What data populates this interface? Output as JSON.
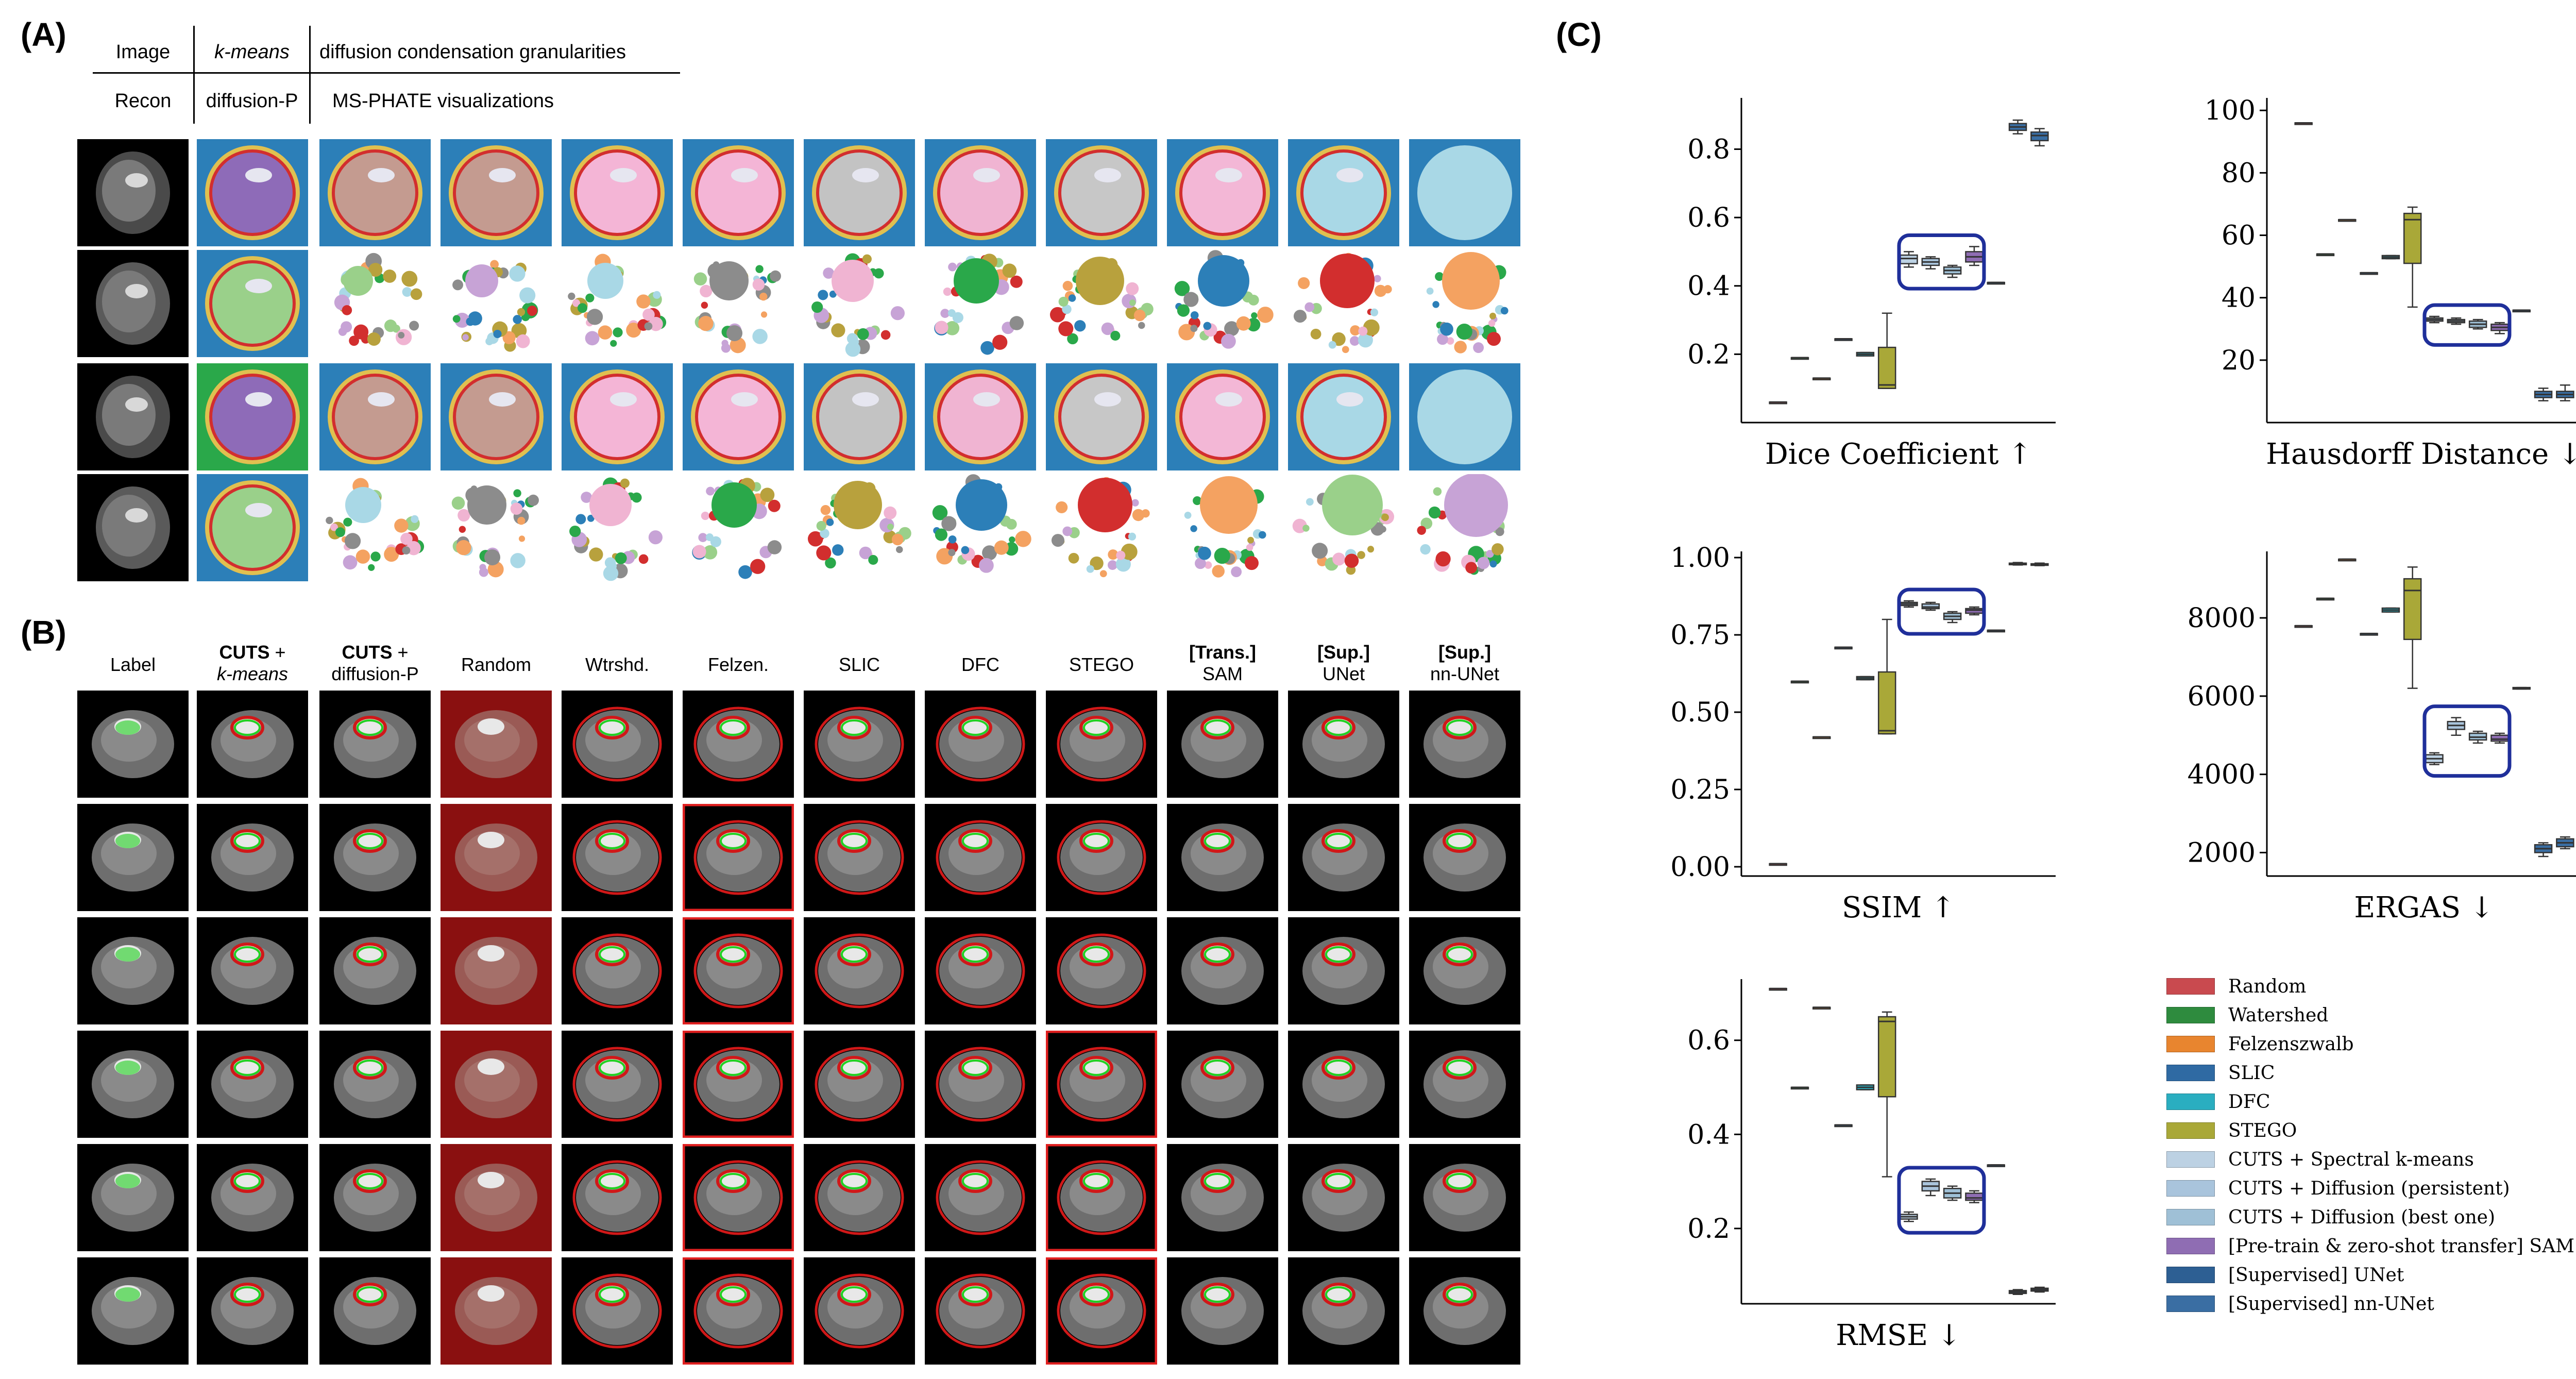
{
  "panels": {
    "a": "(A)",
    "b": "(B)",
    "c": "(C)"
  },
  "panel_a": {
    "header_row1": [
      "Image",
      "k-means",
      "diffusion condensation granularities"
    ],
    "header_row2": [
      "Recon",
      "diffusion-P",
      "MS-PHATE visualizations"
    ]
  },
  "panel_b": {
    "columns": [
      {
        "bold": "",
        "text": "Label"
      },
      {
        "bold": "CUTS",
        "text": " +",
        "line2": "k-means"
      },
      {
        "bold": "CUTS",
        "text": " +",
        "line2": "diffusion-P"
      },
      {
        "bold": "",
        "text": "Random"
      },
      {
        "bold": "",
        "text": "Wtrshd."
      },
      {
        "bold": "",
        "text": "Felzen."
      },
      {
        "bold": "",
        "text": "SLIC"
      },
      {
        "bold": "",
        "text": "DFC"
      },
      {
        "bold": "",
        "text": "STEGO"
      },
      {
        "bold": "[Trans.]",
        "text": "",
        "line2": "SAM"
      },
      {
        "bold": "[Sup.]",
        "text": "",
        "line2": "UNet"
      },
      {
        "bold": "[Sup.]",
        "text": "",
        "line2": "nn-UNet"
      }
    ]
  },
  "legend": [
    {
      "label": "Random",
      "color": "#c94a4f"
    },
    {
      "label": "Watershed",
      "color": "#2e8b3e"
    },
    {
      "label": "Felzenszwalb",
      "color": "#e8852f"
    },
    {
      "label": "SLIC",
      "color": "#2f6aa3"
    },
    {
      "label": "DFC",
      "color": "#2aaec0"
    },
    {
      "label": "STEGO",
      "color": "#a9a838"
    },
    {
      "label": "CUTS + Spectral k-means",
      "color": "#bcd1e3"
    },
    {
      "label": "CUTS + Diffusion (persistent)",
      "color": "#a9c4dc"
    },
    {
      "label": "CUTS + Diffusion (best one)",
      "color": "#9fc0d6"
    },
    {
      "label": "[Pre-train & zero-shot transfer] SAM",
      "color": "#8f6db3"
    },
    {
      "label": "[Supervised] UNet",
      "color": "#2d5f93"
    },
    {
      "label": "[Supervised] nn-UNet",
      "color": "#3a6ea3"
    }
  ],
  "chart_data": [
    {
      "type": "box",
      "xlabel": "Dice Coefficient ↑",
      "ylim": [
        0.0,
        0.95
      ],
      "yticks": [
        0.2,
        0.4,
        0.6,
        0.8
      ],
      "boxes": [
        {
          "method": "Random",
          "median": 0.06,
          "q1": 0.06,
          "q3": 0.06,
          "min": 0.06,
          "max": 0.06
        },
        {
          "method": "Watershed",
          "median": 0.19,
          "q1": 0.19,
          "q3": 0.19,
          "min": 0.19,
          "max": 0.19
        },
        {
          "method": "Felzenszwalb",
          "median": 0.13,
          "q1": 0.13,
          "q3": 0.13,
          "min": 0.13,
          "max": 0.13
        },
        {
          "method": "SLIC",
          "median": 0.245,
          "q1": 0.245,
          "q3": 0.245,
          "min": 0.245,
          "max": 0.245
        },
        {
          "method": "DFC",
          "median": 0.2,
          "q1": 0.195,
          "q3": 0.205,
          "min": 0.195,
          "max": 0.205
        },
        {
          "method": "STEGO",
          "median": 0.11,
          "q1": 0.1,
          "q3": 0.22,
          "min": 0.1,
          "max": 0.32
        },
        {
          "method": "CUTS + Spectral k-means",
          "median": 0.48,
          "q1": 0.465,
          "q3": 0.49,
          "min": 0.455,
          "max": 0.5
        },
        {
          "method": "CUTS + Diffusion (persistent)",
          "median": 0.47,
          "q1": 0.46,
          "q3": 0.48,
          "min": 0.45,
          "max": 0.485
        },
        {
          "method": "CUTS + Diffusion (best one)",
          "median": 0.445,
          "q1": 0.435,
          "q3": 0.455,
          "min": 0.425,
          "max": 0.46
        },
        {
          "method": "[Pre-train & zero-shot transfer] SAM",
          "median": 0.485,
          "q1": 0.47,
          "q3": 0.5,
          "min": 0.46,
          "max": 0.515
        },
        {
          "method": "[Supervised] UNet",
          "median": 0.41,
          "q1": 0.41,
          "q3": 0.41,
          "min": 0.41,
          "max": 0.41
        },
        {
          "method": "[Supervised] nn-UNet",
          "median": 0.865,
          "q1": 0.855,
          "q3": 0.875,
          "min": 0.845,
          "max": 0.885
        },
        {
          "method": "[Supervised] nn-UNet b",
          "median": 0.84,
          "q1": 0.825,
          "q3": 0.85,
          "min": 0.81,
          "max": 0.86
        }
      ],
      "highlight": [
        6,
        9
      ]
    },
    {
      "type": "box",
      "xlabel": "Hausdorff Distance ↓",
      "ylim": [
        0,
        104
      ],
      "yticks": [
        20,
        40,
        60,
        80,
        100
      ],
      "boxes": [
        {
          "median": 96,
          "q1": 96,
          "q3": 96,
          "min": 96,
          "max": 96
        },
        {
          "median": 54,
          "q1": 54,
          "q3": 54,
          "min": 54,
          "max": 54
        },
        {
          "median": 65,
          "q1": 65,
          "q3": 65,
          "min": 65,
          "max": 65
        },
        {
          "median": 48,
          "q1": 48,
          "q3": 48,
          "min": 48,
          "max": 48
        },
        {
          "median": 53,
          "q1": 52.5,
          "q3": 53.5,
          "min": 52.5,
          "max": 53.5
        },
        {
          "median": 65,
          "q1": 51,
          "q3": 67,
          "min": 37,
          "max": 69
        },
        {
          "median": 33,
          "q1": 32.5,
          "q3": 33.5,
          "min": 32,
          "max": 34
        },
        {
          "median": 32.5,
          "q1": 32,
          "q3": 33,
          "min": 31.5,
          "max": 33.5
        },
        {
          "median": 31.5,
          "q1": 30.5,
          "q3": 32.5,
          "min": 30,
          "max": 33
        },
        {
          "median": 30.5,
          "q1": 29.5,
          "q3": 31.5,
          "min": 28.5,
          "max": 32
        },
        {
          "median": 36,
          "q1": 36,
          "q3": 36,
          "min": 36,
          "max": 36
        },
        {
          "median": 9,
          "q1": 8,
          "q3": 10,
          "min": 7,
          "max": 11
        },
        {
          "median": 9,
          "q1": 8,
          "q3": 10,
          "min": 7,
          "max": 12
        }
      ],
      "highlight": [
        6,
        9
      ]
    },
    {
      "type": "box",
      "xlabel": "SSIM ↑",
      "ylim": [
        -0.03,
        1.02
      ],
      "yticks": [
        0.0,
        0.25,
        0.5,
        0.75,
        1.0
      ],
      "boxes": [
        {
          "median": 0.01,
          "q1": 0.01,
          "q3": 0.01,
          "min": 0.01,
          "max": 0.01
        },
        {
          "median": 0.6,
          "q1": 0.6,
          "q3": 0.6,
          "min": 0.6,
          "max": 0.6
        },
        {
          "median": 0.42,
          "q1": 0.42,
          "q3": 0.42,
          "min": 0.42,
          "max": 0.42
        },
        {
          "median": 0.71,
          "q1": 0.71,
          "q3": 0.71,
          "min": 0.71,
          "max": 0.71
        },
        {
          "median": 0.61,
          "q1": 0.605,
          "q3": 0.615,
          "min": 0.605,
          "max": 0.615
        },
        {
          "median": 0.44,
          "q1": 0.43,
          "q3": 0.63,
          "min": 0.43,
          "max": 0.8
        },
        {
          "median": 0.85,
          "q1": 0.845,
          "q3": 0.855,
          "min": 0.84,
          "max": 0.86
        },
        {
          "median": 0.84,
          "q1": 0.835,
          "q3": 0.85,
          "min": 0.83,
          "max": 0.855
        },
        {
          "median": 0.81,
          "q1": 0.8,
          "q3": 0.82,
          "min": 0.79,
          "max": 0.825
        },
        {
          "median": 0.83,
          "q1": 0.82,
          "q3": 0.835,
          "min": 0.815,
          "max": 0.84
        },
        {
          "median": 0.765,
          "q1": 0.765,
          "q3": 0.765,
          "min": 0.765,
          "max": 0.765
        },
        {
          "median": 0.98,
          "q1": 0.978,
          "q3": 0.982,
          "min": 0.976,
          "max": 0.984
        },
        {
          "median": 0.978,
          "q1": 0.976,
          "q3": 0.98,
          "min": 0.974,
          "max": 0.982
        }
      ],
      "highlight": [
        6,
        9
      ]
    },
    {
      "type": "box",
      "xlabel": "ERGAS ↓",
      "ylim": [
        1400,
        9700
      ],
      "yticks": [
        2000,
        4000,
        6000,
        8000
      ],
      "boxes": [
        {
          "median": 7800,
          "q1": 7800,
          "q3": 7800,
          "min": 7800,
          "max": 7800
        },
        {
          "median": 8500,
          "q1": 8500,
          "q3": 8500,
          "min": 8500,
          "max": 8500
        },
        {
          "median": 9500,
          "q1": 9500,
          "q3": 9500,
          "min": 9500,
          "max": 9500
        },
        {
          "median": 7600,
          "q1": 7600,
          "q3": 7600,
          "min": 7600,
          "max": 7600
        },
        {
          "median": 8200,
          "q1": 8150,
          "q3": 8250,
          "min": 8150,
          "max": 8250
        },
        {
          "median": 8700,
          "q1": 7450,
          "q3": 9000,
          "min": 6200,
          "max": 9300
        },
        {
          "median": 4400,
          "q1": 4300,
          "q3": 4500,
          "min": 4250,
          "max": 4550
        },
        {
          "median": 5250,
          "q1": 5150,
          "q3": 5350,
          "min": 5000,
          "max": 5450
        },
        {
          "median": 4950,
          "q1": 4880,
          "q3": 5050,
          "min": 4800,
          "max": 5100
        },
        {
          "median": 4900,
          "q1": 4850,
          "q3": 5000,
          "min": 4800,
          "max": 5050
        },
        {
          "median": 6200,
          "q1": 6180,
          "q3": 6220,
          "min": 6180,
          "max": 6220
        },
        {
          "median": 2100,
          "q1": 2000,
          "q3": 2200,
          "min": 1900,
          "max": 2250
        },
        {
          "median": 2250,
          "q1": 2150,
          "q3": 2350,
          "min": 2100,
          "max": 2400
        }
      ],
      "highlight": [
        6,
        9
      ]
    },
    {
      "type": "box",
      "xlabel": "RMSE ↓",
      "ylim": [
        0.04,
        0.73
      ],
      "yticks": [
        0.2,
        0.4,
        0.6
      ],
      "boxes": [
        {
          "median": 0.71,
          "q1": 0.71,
          "q3": 0.71,
          "min": 0.71,
          "max": 0.71
        },
        {
          "median": 0.5,
          "q1": 0.5,
          "q3": 0.5,
          "min": 0.5,
          "max": 0.5
        },
        {
          "median": 0.67,
          "q1": 0.67,
          "q3": 0.67,
          "min": 0.67,
          "max": 0.67
        },
        {
          "median": 0.42,
          "q1": 0.42,
          "q3": 0.42,
          "min": 0.42,
          "max": 0.42
        },
        {
          "median": 0.5,
          "q1": 0.495,
          "q3": 0.505,
          "min": 0.495,
          "max": 0.505
        },
        {
          "median": 0.64,
          "q1": 0.48,
          "q3": 0.65,
          "min": 0.31,
          "max": 0.66
        },
        {
          "median": 0.225,
          "q1": 0.22,
          "q3": 0.23,
          "min": 0.215,
          "max": 0.235
        },
        {
          "median": 0.29,
          "q1": 0.28,
          "q3": 0.3,
          "min": 0.27,
          "max": 0.305
        },
        {
          "median": 0.275,
          "q1": 0.265,
          "q3": 0.285,
          "min": 0.26,
          "max": 0.29
        },
        {
          "median": 0.265,
          "q1": 0.26,
          "q3": 0.275,
          "min": 0.255,
          "max": 0.28
        },
        {
          "median": 0.335,
          "q1": 0.335,
          "q3": 0.335,
          "min": 0.335,
          "max": 0.335
        },
        {
          "median": 0.065,
          "q1": 0.062,
          "q3": 0.068,
          "min": 0.06,
          "max": 0.07
        },
        {
          "median": 0.07,
          "q1": 0.067,
          "q3": 0.073,
          "min": 0.065,
          "max": 0.075
        }
      ],
      "highlight": [
        6,
        9
      ]
    }
  ]
}
